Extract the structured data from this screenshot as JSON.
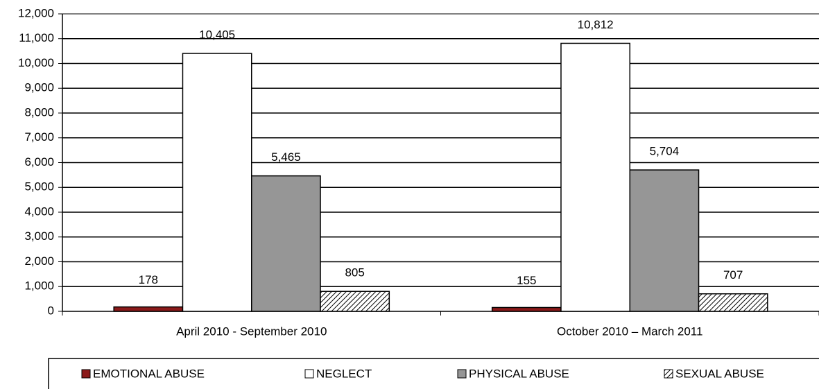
{
  "chart_data": {
    "type": "bar",
    "categories": [
      "April 2010 - September 2010",
      "October 2010 – March 2011"
    ],
    "series": [
      {
        "name": "EMOTIONAL ABUSE",
        "color": "#8b1a1a",
        "values": [
          178,
          155
        ],
        "value_labels": [
          "178",
          "155"
        ]
      },
      {
        "name": "NEGLECT",
        "color": "#ffffff",
        "values": [
          10405,
          10812
        ],
        "value_labels": [
          "10,405",
          "10,812"
        ]
      },
      {
        "name": "PHYSICAL ABUSE",
        "color": "#969696",
        "values": [
          5465,
          5704
        ],
        "value_labels": [
          "5,465",
          "5,704"
        ]
      },
      {
        "name": "SEXUAL ABUSE",
        "color": "#000000",
        "hatch": true,
        "values": [
          805,
          707
        ],
        "value_labels": [
          "805",
          "707"
        ]
      }
    ],
    "ylim": [
      0,
      12000
    ],
    "yticks": [
      0,
      {
        "value": 1000,
        "label": "1,000"
      },
      {
        "value": 2000,
        "label": "2,000"
      },
      {
        "value": 3000,
        "label": "3,000"
      },
      {
        "value": 4000,
        "label": "4,000"
      },
      {
        "value": 5000,
        "label": "5,000"
      },
      {
        "value": 6000,
        "label": "6,000"
      },
      {
        "value": 7000,
        "label": "7,000"
      },
      {
        "value": 8000,
        "label": "8,000"
      },
      {
        "value": 9000,
        "label": "9,000"
      },
      {
        "value": 10000,
        "label": "10,000"
      },
      {
        "value": 11000,
        "label": "11,000"
      },
      {
        "value": 12000,
        "label": "12,000"
      }
    ],
    "grid": true,
    "legend": "bottom"
  }
}
